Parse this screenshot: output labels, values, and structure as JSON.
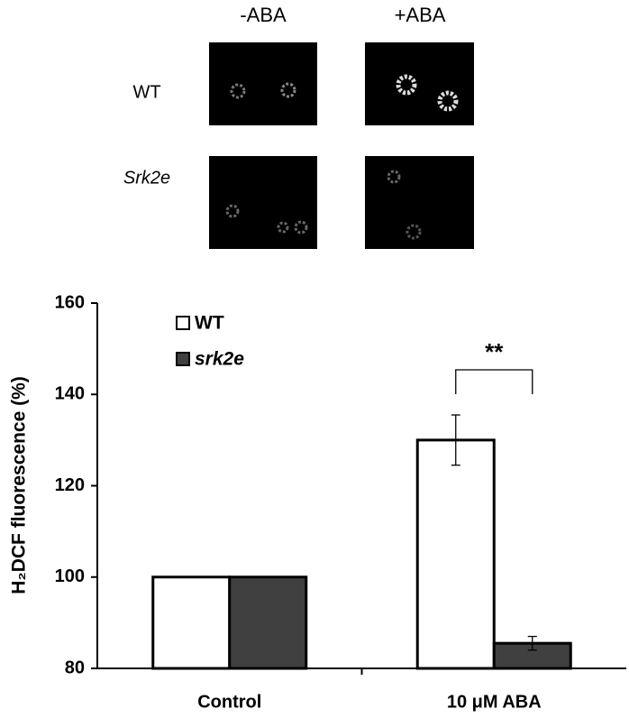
{
  "panel": {
    "columns": [
      "-ABA",
      "+ABA"
    ],
    "rows": [
      "WT",
      "Srk2e"
    ]
  },
  "chart_data": {
    "type": "bar",
    "ylabel": "H₂DCF fluorescence (%)",
    "categories": [
      "Control",
      "10 μM ABA"
    ],
    "series": [
      {
        "name": "WT",
        "color": "#ffffff",
        "values": [
          100,
          130
        ],
        "errors": [
          null,
          5.5
        ]
      },
      {
        "name": "srk2e",
        "color": "#404040",
        "values": [
          100,
          85.5
        ],
        "errors": [
          null,
          1.5
        ]
      }
    ],
    "ylim": [
      80,
      160
    ],
    "yticks": [
      80,
      100,
      120,
      140,
      160
    ],
    "annotation": "**",
    "legend": "upper left"
  }
}
